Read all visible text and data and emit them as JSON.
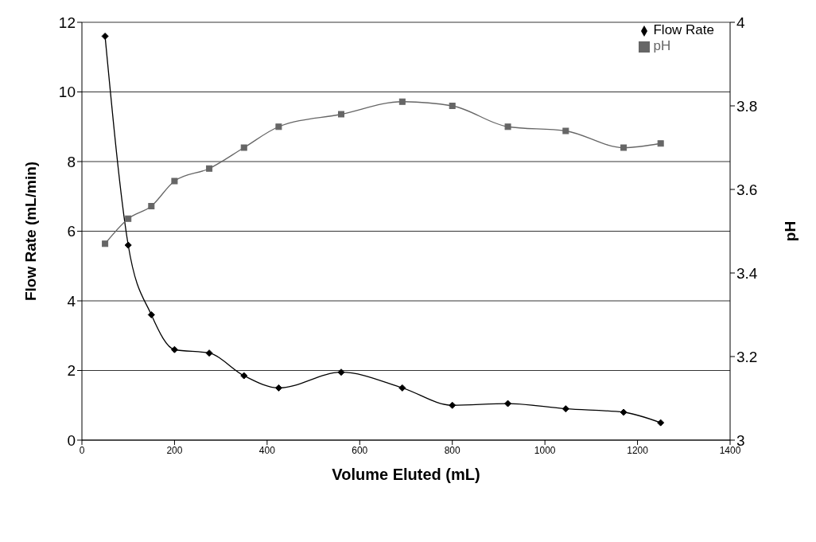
{
  "chart_data": {
    "type": "line",
    "xlabel": "Volume Eluted (mL)",
    "ylabel": "Flow Rate (mL/min)",
    "y2label": "pH",
    "x": [
      50,
      100,
      150,
      200,
      275,
      350,
      425,
      560,
      692,
      800,
      920,
      1045,
      1170,
      1250
    ],
    "series": [
      {
        "name": "Flow Rate",
        "color": "#000000",
        "marker": "diamond",
        "values": [
          11.6,
          5.6,
          3.6,
          2.6,
          2.5,
          1.85,
          1.5,
          1.95,
          1.5,
          1.0,
          1.05,
          0.9,
          0.8,
          0.5
        ]
      },
      {
        "name": "pH",
        "color": "#666666",
        "marker": "square",
        "axis": "y2",
        "values": [
          3.47,
          3.53,
          3.56,
          3.62,
          3.65,
          3.7,
          3.75,
          3.78,
          3.81,
          3.8,
          3.75,
          3.74,
          3.7,
          3.71
        ]
      }
    ],
    "xlim": [
      0,
      1400
    ],
    "xticks": [
      0,
      200,
      400,
      600,
      800,
      1000,
      1200,
      1400
    ],
    "ylim": [
      0,
      12
    ],
    "yticks": [
      0,
      2,
      4,
      6,
      8,
      10,
      12
    ],
    "y2lim": [
      3,
      4
    ],
    "y2ticks": [
      3,
      3.2,
      3.4,
      3.6,
      3.8,
      4
    ],
    "grid": "y",
    "legend": "top right"
  }
}
